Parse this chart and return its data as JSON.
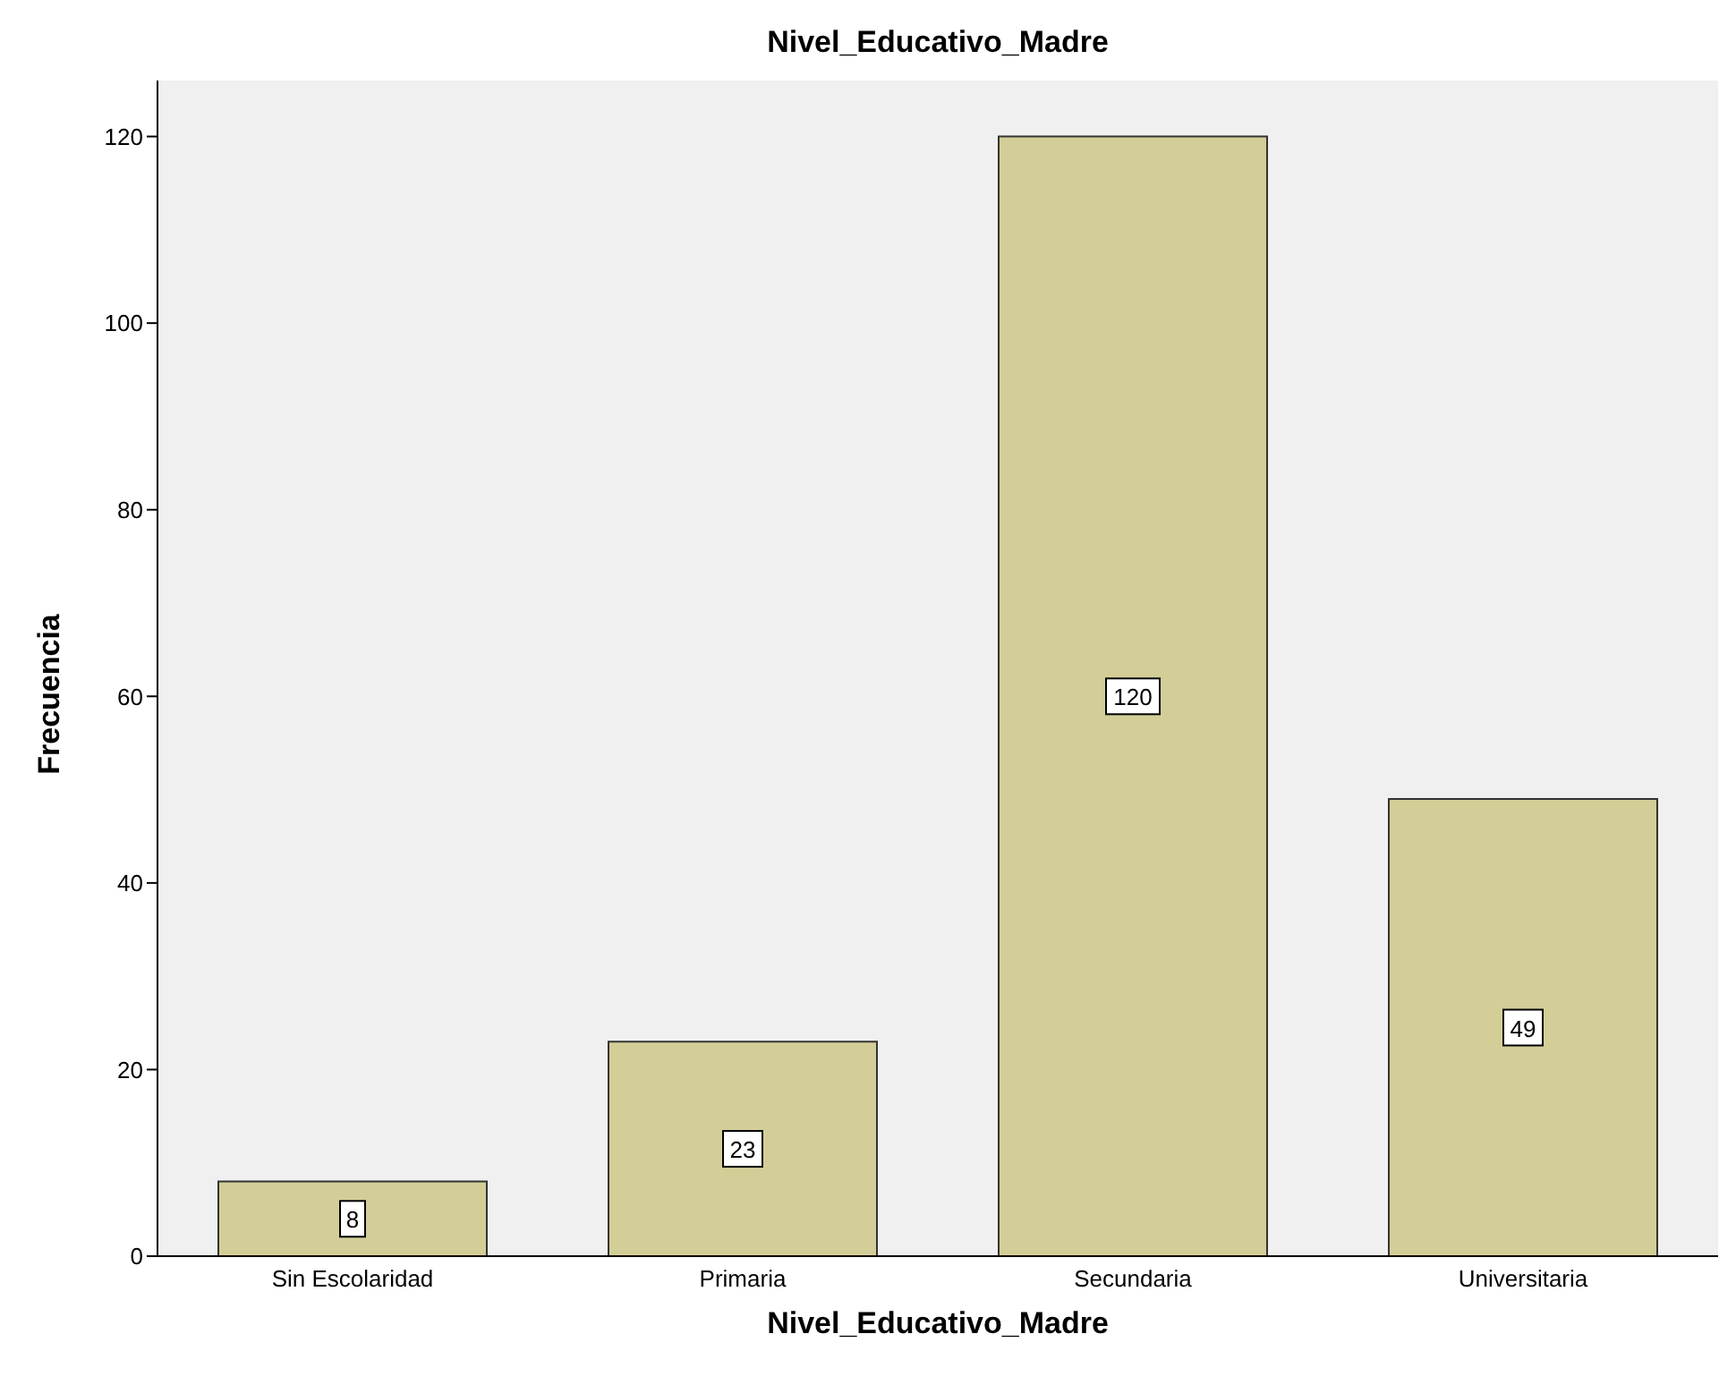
{
  "chart_data": {
    "type": "bar",
    "title": "Nivel_Educativo_Madre",
    "xlabel": "Nivel_Educativo_Madre",
    "ylabel": "Frecuencia",
    "categories": [
      "Sin Escolaridad",
      "Primaria",
      "Secundaria",
      "Universitaria"
    ],
    "values": [
      8,
      23,
      120,
      49
    ],
    "color": "#d3ce97",
    "ylim": [
      0,
      126
    ],
    "yticks": [
      0,
      20,
      40,
      60,
      80,
      100,
      120
    ],
    "data_labels": true
  }
}
